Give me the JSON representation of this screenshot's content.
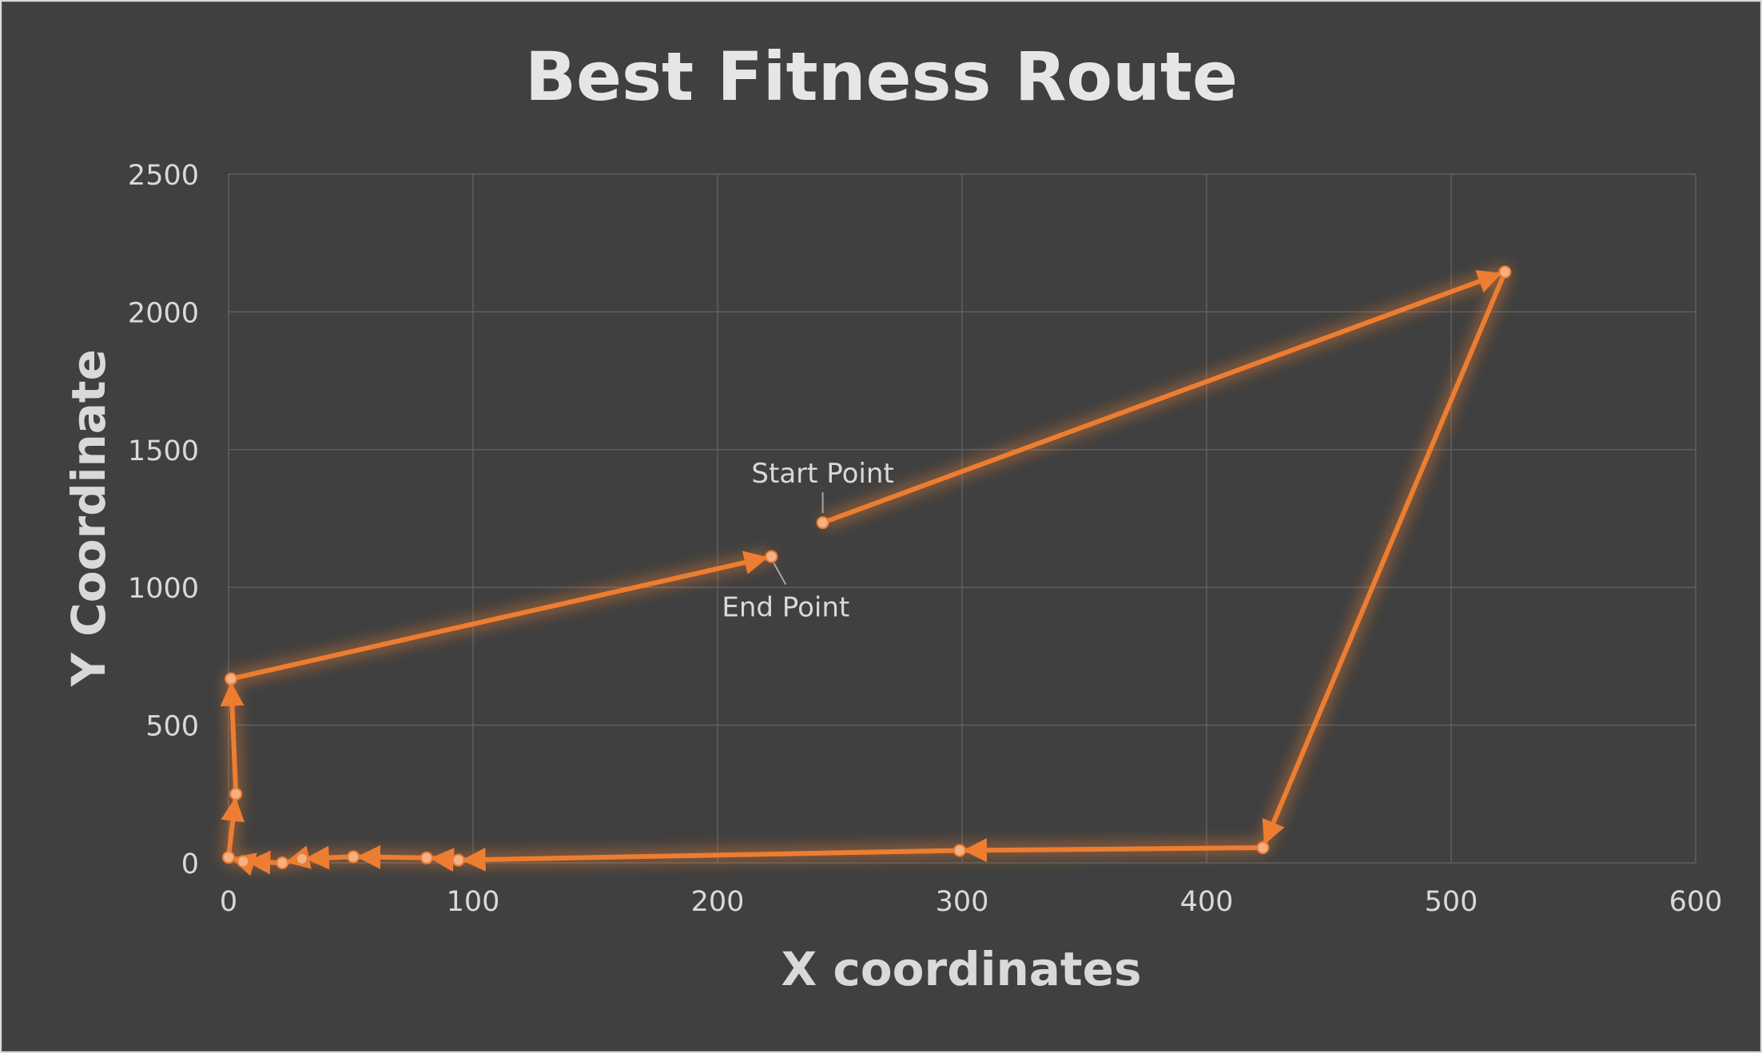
{
  "chart_data": {
    "type": "scatter",
    "title": "Best Fitness Route",
    "xlabel": "X coordinates",
    "ylabel": "Y Coordinate",
    "xlim": [
      0,
      600
    ],
    "ylim": [
      0,
      2500
    ],
    "xticks": [
      0,
      100,
      200,
      300,
      400,
      500,
      600
    ],
    "yticks": [
      0,
      500,
      1000,
      1500,
      2000,
      2500
    ],
    "grid": true,
    "line_color": "#ED7D31",
    "marker_color": "#F4B183",
    "background": "#404040",
    "series": [
      {
        "points": [
          {
            "x": 243,
            "y": 1235
          },
          {
            "x": 522,
            "y": 2145
          },
          {
            "x": 423,
            "y": 55
          },
          {
            "x": 299,
            "y": 45
          },
          {
            "x": 94,
            "y": 10
          },
          {
            "x": 81,
            "y": 18
          },
          {
            "x": 51,
            "y": 22
          },
          {
            "x": 30,
            "y": 15
          },
          {
            "x": 22,
            "y": 0
          },
          {
            "x": 6,
            "y": 5
          },
          {
            "x": 0,
            "y": 20
          },
          {
            "x": 3,
            "y": 250
          },
          {
            "x": 1,
            "y": 668
          },
          {
            "x": 222,
            "y": 1112
          }
        ]
      }
    ],
    "annotations": [
      {
        "text": "Start Point",
        "x": 243,
        "y": 1235
      },
      {
        "text": "End Point",
        "x": 222,
        "y": 1112
      }
    ]
  }
}
